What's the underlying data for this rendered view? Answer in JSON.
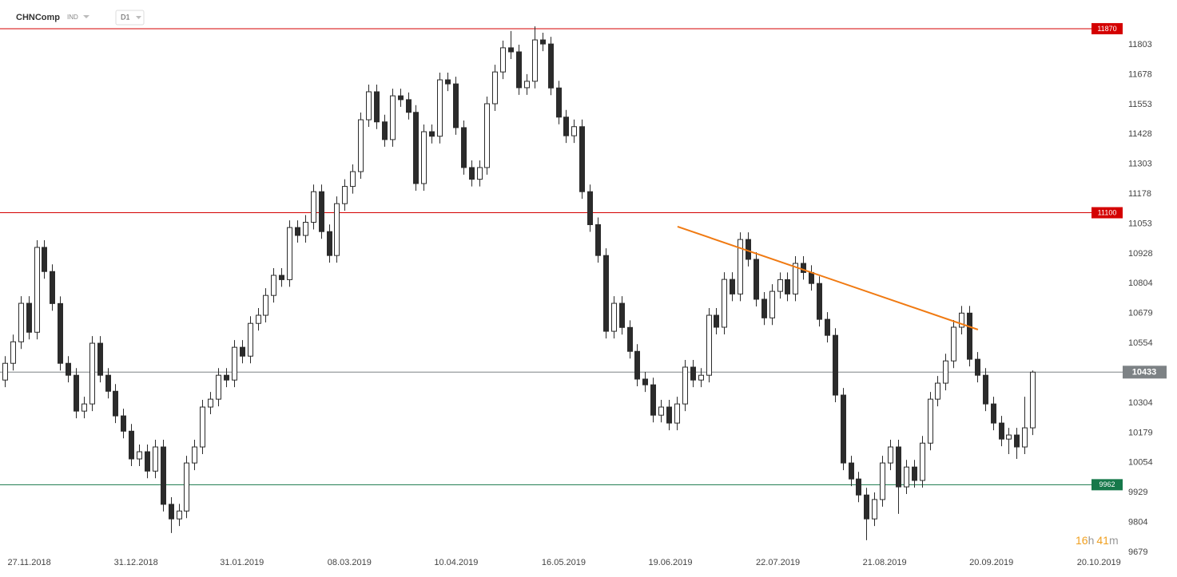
{
  "chart_data": {
    "type": "candlestick",
    "symbol": "CHNComp",
    "market": "IND",
    "timeframe": "D1",
    "countdown": [
      "16",
      "h",
      "41",
      "m"
    ],
    "up_color": "#ffffff",
    "down_color": "#2b2b2b",
    "candles": [
      [
        10400,
        10500,
        10370,
        10470
      ],
      [
        10470,
        10590,
        10440,
        10560
      ],
      [
        10560,
        10751,
        10530,
        10721
      ],
      [
        10721,
        10751,
        10570,
        10600
      ],
      [
        10600,
        10985,
        10570,
        10955
      ],
      [
        10955,
        10985,
        10824,
        10854
      ],
      [
        10854,
        10884,
        10690,
        10720
      ],
      [
        10720,
        10750,
        10440,
        10470
      ],
      [
        10470,
        10500,
        10390,
        10420
      ],
      [
        10420,
        10450,
        10240,
        10270
      ],
      [
        10270,
        10330,
        10240,
        10300
      ],
      [
        10300,
        10584,
        10270,
        10554
      ],
      [
        10554,
        10584,
        10390,
        10420
      ],
      [
        10420,
        10450,
        10323,
        10353
      ],
      [
        10353,
        10383,
        10220,
        10250
      ],
      [
        10250,
        10280,
        10156,
        10186
      ],
      [
        10186,
        10216,
        10040,
        10070
      ],
      [
        10070,
        10130,
        10040,
        10100
      ],
      [
        10100,
        10130,
        9989,
        10019
      ],
      [
        10019,
        10150,
        9989,
        10120
      ],
      [
        10120,
        10150,
        9850,
        9880
      ],
      [
        9880,
        9910,
        9760,
        9819
      ],
      [
        9819,
        9882,
        9789,
        9852
      ],
      [
        9852,
        10083,
        9822,
        10053
      ],
      [
        10053,
        10150,
        10023,
        10120
      ],
      [
        10120,
        10317,
        10090,
        10287
      ],
      [
        10287,
        10350,
        10257,
        10320
      ],
      [
        10320,
        10450,
        10290,
        10420
      ],
      [
        10420,
        10450,
        10370,
        10400
      ],
      [
        10400,
        10567,
        10370,
        10537
      ],
      [
        10537,
        10567,
        10470,
        10500
      ],
      [
        10500,
        10667,
        10470,
        10637
      ],
      [
        10637,
        10701,
        10607,
        10671
      ],
      [
        10671,
        10784,
        10641,
        10754
      ],
      [
        10754,
        10868,
        10724,
        10838
      ],
      [
        10838,
        10868,
        10790,
        10820
      ],
      [
        10820,
        11068,
        10790,
        11038
      ],
      [
        11038,
        11068,
        10975,
        11005
      ],
      [
        11005,
        11090,
        10975,
        11060
      ],
      [
        11060,
        11218,
        11030,
        11188
      ],
      [
        11188,
        11218,
        10991,
        11021
      ],
      [
        11021,
        11051,
        10891,
        10921
      ],
      [
        10921,
        11168,
        10891,
        11138
      ],
      [
        11138,
        11240,
        11108,
        11210
      ],
      [
        11210,
        11302,
        11180,
        11272
      ],
      [
        11272,
        11519,
        11242,
        11489
      ],
      [
        11489,
        11636,
        11459,
        11606
      ],
      [
        11606,
        11636,
        11450,
        11480
      ],
      [
        11480,
        11510,
        11376,
        11406
      ],
      [
        11406,
        11619,
        11376,
        11589
      ],
      [
        11589,
        11619,
        11543,
        11573
      ],
      [
        11573,
        11603,
        11490,
        11520
      ],
      [
        11520,
        11550,
        11192,
        11222
      ],
      [
        11222,
        11469,
        11192,
        11439
      ],
      [
        11439,
        11469,
        11390,
        11420
      ],
      [
        11420,
        11686,
        11390,
        11656
      ],
      [
        11656,
        11686,
        11609,
        11639
      ],
      [
        11639,
        11669,
        11426,
        11456
      ],
      [
        11456,
        11486,
        11259,
        11289
      ],
      [
        11289,
        11319,
        11210,
        11240
      ],
      [
        11240,
        11319,
        11210,
        11289
      ],
      [
        11289,
        11586,
        11259,
        11556
      ],
      [
        11556,
        11719,
        11526,
        11689
      ],
      [
        11689,
        11820,
        11659,
        11790
      ],
      [
        11790,
        11860,
        11743,
        11773
      ],
      [
        11773,
        11803,
        11593,
        11623
      ],
      [
        11623,
        11680,
        11593,
        11650
      ],
      [
        11650,
        11880,
        11620,
        11823
      ],
      [
        11823,
        11853,
        11776,
        11806
      ],
      [
        11806,
        11836,
        11592,
        11622
      ],
      [
        11622,
        11652,
        11470,
        11500
      ],
      [
        11500,
        11530,
        11392,
        11422
      ],
      [
        11422,
        11490,
        11392,
        11460
      ],
      [
        11460,
        11490,
        11158,
        11188
      ],
      [
        11188,
        11218,
        11020,
        11050
      ],
      [
        11050,
        11080,
        10891,
        10921
      ],
      [
        10921,
        10951,
        10574,
        10604
      ],
      [
        10604,
        10751,
        10574,
        10721
      ],
      [
        10721,
        10751,
        10590,
        10620
      ],
      [
        10620,
        10650,
        10490,
        10520
      ],
      [
        10520,
        10550,
        10374,
        10404
      ],
      [
        10404,
        10434,
        10350,
        10380
      ],
      [
        10380,
        10410,
        10223,
        10253
      ],
      [
        10253,
        10317,
        10223,
        10287
      ],
      [
        10287,
        10317,
        10190,
        10220
      ],
      [
        10220,
        10330,
        10190,
        10300
      ],
      [
        10300,
        10484,
        10270,
        10454
      ],
      [
        10454,
        10484,
        10370,
        10400
      ],
      [
        10400,
        10450,
        10370,
        10420
      ],
      [
        10420,
        10701,
        10390,
        10671
      ],
      [
        10671,
        10701,
        10591,
        10621
      ],
      [
        10621,
        10851,
        10591,
        10821
      ],
      [
        10821,
        10851,
        10730,
        10760
      ],
      [
        10760,
        11018,
        10730,
        10988
      ],
      [
        10988,
        11018,
        10875,
        10905
      ],
      [
        10905,
        10935,
        10708,
        10738
      ],
      [
        10738,
        10768,
        10630,
        10660
      ],
      [
        10660,
        10801,
        10630,
        10771
      ],
      [
        10771,
        10850,
        10741,
        10820
      ],
      [
        10820,
        10850,
        10730,
        10760
      ],
      [
        10760,
        10918,
        10730,
        10888
      ],
      [
        10888,
        10918,
        10820,
        10850
      ],
      [
        10850,
        10880,
        10774,
        10804
      ],
      [
        10804,
        10834,
        10624,
        10654
      ],
      [
        10654,
        10684,
        10557,
        10587
      ],
      [
        10587,
        10617,
        10307,
        10337
      ],
      [
        10337,
        10367,
        10023,
        10053
      ],
      [
        10053,
        10083,
        9956,
        9986
      ],
      [
        9986,
        10016,
        9889,
        9919
      ],
      [
        9919,
        9949,
        9730,
        9819
      ],
      [
        9819,
        9930,
        9789,
        9900
      ],
      [
        9900,
        10083,
        9870,
        10053
      ],
      [
        10053,
        10150,
        10023,
        10120
      ],
      [
        10120,
        10150,
        9840,
        9953
      ],
      [
        9953,
        10066,
        9923,
        10036
      ],
      [
        10036,
        10066,
        9950,
        9980
      ],
      [
        9980,
        10166,
        9950,
        10136
      ],
      [
        10136,
        10350,
        10106,
        10320
      ],
      [
        10320,
        10417,
        10290,
        10387
      ],
      [
        10387,
        10510,
        10357,
        10480
      ],
      [
        10480,
        10651,
        10450,
        10621
      ],
      [
        10621,
        10710,
        10591,
        10680
      ],
      [
        10680,
        10710,
        10457,
        10487
      ],
      [
        10487,
        10517,
        10390,
        10420
      ],
      [
        10420,
        10450,
        10270,
        10300
      ],
      [
        10300,
        10330,
        10190,
        10220
      ],
      [
        10220,
        10250,
        10123,
        10153
      ],
      [
        10153,
        10200,
        10090,
        10170
      ],
      [
        10170,
        10200,
        10070,
        10120
      ],
      [
        10120,
        10330,
        10090,
        10200
      ],
      [
        10200,
        10440,
        10170,
        10433
      ]
    ],
    "xlim": [
      -0.6,
      140.9
    ],
    "xticks": [
      {
        "value": 3.1,
        "label": "27.11.2018"
      },
      {
        "value": 16.6,
        "label": "31.12.2018"
      },
      {
        "value": 30.0,
        "label": "31.01.2019"
      },
      {
        "value": 43.6,
        "label": "08.03.2019"
      },
      {
        "value": 57.1,
        "label": "10.04.2019"
      },
      {
        "value": 70.7,
        "label": "16.05.2019"
      },
      {
        "value": 84.2,
        "label": "19.06.2019"
      },
      {
        "value": 97.8,
        "label": "22.07.2019"
      },
      {
        "value": 111.3,
        "label": "21.08.2019"
      },
      {
        "value": 124.8,
        "label": "20.09.2019"
      },
      {
        "value": 138.4,
        "label": "20.10.2019"
      }
    ],
    "ylim": [
      9636,
      11990
    ],
    "yticks": [
      11803,
      11678,
      11553,
      11428,
      11303,
      11178,
      11053,
      10928,
      10804,
      10679,
      10554,
      10304,
      10179,
      10054,
      9929,
      9804,
      9679
    ],
    "grid": false,
    "levels": [
      {
        "value": 11870,
        "color": "#d40000"
      },
      {
        "value": 11100,
        "color": "#d40000"
      },
      {
        "value": 9962,
        "color": "#16784a"
      }
    ],
    "last_price": {
      "value": 10433,
      "color": "#7d8285"
    },
    "trendline": {
      "x": [
        85.1,
        123.1
      ],
      "y": [
        11042,
        10611
      ],
      "color": "#f07a12"
    }
  }
}
